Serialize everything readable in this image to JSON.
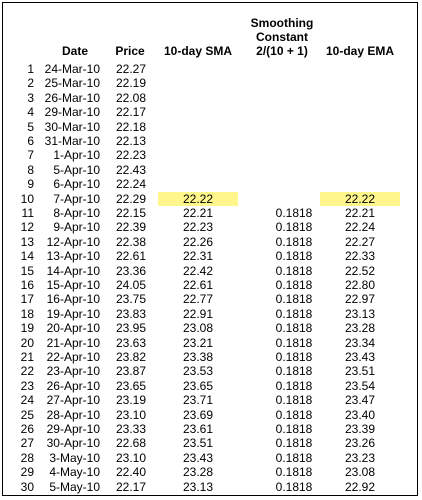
{
  "headers": {
    "date": "Date",
    "price": "Price",
    "sma": "10-day SMA",
    "smoothing_line1": "Smoothing",
    "smoothing_line2": "Constant",
    "smoothing_line3": "2/(10 + 1)",
    "ema": "10-day EMA"
  },
  "highlight_color": "#fff78c",
  "rows": [
    {
      "n": "1",
      "date": "24-Mar-10",
      "price": "22.27",
      "sma": "",
      "k": "",
      "ema": ""
    },
    {
      "n": "2",
      "date": "25-Mar-10",
      "price": "22.19",
      "sma": "",
      "k": "",
      "ema": ""
    },
    {
      "n": "3",
      "date": "26-Mar-10",
      "price": "22.08",
      "sma": "",
      "k": "",
      "ema": ""
    },
    {
      "n": "4",
      "date": "29-Mar-10",
      "price": "22.17",
      "sma": "",
      "k": "",
      "ema": ""
    },
    {
      "n": "5",
      "date": "30-Mar-10",
      "price": "22.18",
      "sma": "",
      "k": "",
      "ema": ""
    },
    {
      "n": "6",
      "date": "31-Mar-10",
      "price": "22.13",
      "sma": "",
      "k": "",
      "ema": ""
    },
    {
      "n": "7",
      "date": "1-Apr-10",
      "price": "22.23",
      "sma": "",
      "k": "",
      "ema": ""
    },
    {
      "n": "8",
      "date": "5-Apr-10",
      "price": "22.43",
      "sma": "",
      "k": "",
      "ema": ""
    },
    {
      "n": "9",
      "date": "6-Apr-10",
      "price": "22.24",
      "sma": "",
      "k": "",
      "ema": ""
    },
    {
      "n": "10",
      "date": "7-Apr-10",
      "price": "22.29",
      "sma": "22.22",
      "k": "",
      "ema": "22.22",
      "highlight": true
    },
    {
      "n": "11",
      "date": "8-Apr-10",
      "price": "22.15",
      "sma": "22.21",
      "k": "0.1818",
      "ema": "22.21"
    },
    {
      "n": "12",
      "date": "9-Apr-10",
      "price": "22.39",
      "sma": "22.23",
      "k": "0.1818",
      "ema": "22.24"
    },
    {
      "n": "13",
      "date": "12-Apr-10",
      "price": "22.38",
      "sma": "22.26",
      "k": "0.1818",
      "ema": "22.27"
    },
    {
      "n": "14",
      "date": "13-Apr-10",
      "price": "22.61",
      "sma": "22.31",
      "k": "0.1818",
      "ema": "22.33"
    },
    {
      "n": "15",
      "date": "14-Apr-10",
      "price": "23.36",
      "sma": "22.42",
      "k": "0.1818",
      "ema": "22.52"
    },
    {
      "n": "16",
      "date": "15-Apr-10",
      "price": "24.05",
      "sma": "22.61",
      "k": "0.1818",
      "ema": "22.80"
    },
    {
      "n": "17",
      "date": "16-Apr-10",
      "price": "23.75",
      "sma": "22.77",
      "k": "0.1818",
      "ema": "22.97"
    },
    {
      "n": "18",
      "date": "19-Apr-10",
      "price": "23.83",
      "sma": "22.91",
      "k": "0.1818",
      "ema": "23.13"
    },
    {
      "n": "19",
      "date": "20-Apr-10",
      "price": "23.95",
      "sma": "23.08",
      "k": "0.1818",
      "ema": "23.28"
    },
    {
      "n": "20",
      "date": "21-Apr-10",
      "price": "23.63",
      "sma": "23.21",
      "k": "0.1818",
      "ema": "23.34"
    },
    {
      "n": "21",
      "date": "22-Apr-10",
      "price": "23.82",
      "sma": "23.38",
      "k": "0.1818",
      "ema": "23.43"
    },
    {
      "n": "22",
      "date": "23-Apr-10",
      "price": "23.87",
      "sma": "23.53",
      "k": "0.1818",
      "ema": "23.51"
    },
    {
      "n": "23",
      "date": "26-Apr-10",
      "price": "23.65",
      "sma": "23.65",
      "k": "0.1818",
      "ema": "23.54"
    },
    {
      "n": "24",
      "date": "27-Apr-10",
      "price": "23.19",
      "sma": "23.71",
      "k": "0.1818",
      "ema": "23.47"
    },
    {
      "n": "25",
      "date": "28-Apr-10",
      "price": "23.10",
      "sma": "23.69",
      "k": "0.1818",
      "ema": "23.40"
    },
    {
      "n": "26",
      "date": "29-Apr-10",
      "price": "23.33",
      "sma": "23.61",
      "k": "0.1818",
      "ema": "23.39"
    },
    {
      "n": "27",
      "date": "30-Apr-10",
      "price": "22.68",
      "sma": "23.51",
      "k": "0.1818",
      "ema": "23.26"
    },
    {
      "n": "28",
      "date": "3-May-10",
      "price": "23.10",
      "sma": "23.43",
      "k": "0.1818",
      "ema": "23.23"
    },
    {
      "n": "29",
      "date": "4-May-10",
      "price": "22.40",
      "sma": "23.28",
      "k": "0.1818",
      "ema": "23.08"
    },
    {
      "n": "30",
      "date": "5-May-10",
      "price": "22.17",
      "sma": "23.13",
      "k": "0.1818",
      "ema": "22.92"
    }
  ]
}
